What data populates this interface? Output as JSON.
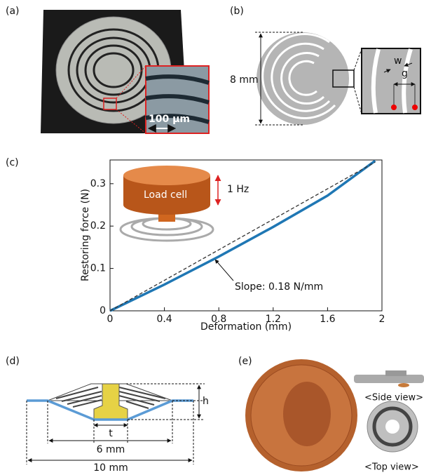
{
  "panels": {
    "labels": [
      "(a)",
      "(b)",
      "(c)",
      "(d)",
      "(e)"
    ]
  },
  "panel_a": {
    "scale": "100 μm"
  },
  "panel_b": {
    "size": "8 mm",
    "w": "w",
    "g": "g"
  },
  "chart_data": {
    "type": "line",
    "xlabel": "Deformation (mm)",
    "ylabel": "Restoring force (N)",
    "annotations": [
      "Slope: 0.18 N/mm",
      "Load cell",
      "1 Hz"
    ],
    "x": [
      0,
      0.4,
      0.8,
      1.2,
      1.6,
      1.95
    ],
    "series": [
      {
        "color": "#1f77b4",
        "values": [
          0,
          0.062,
          0.128,
          0.198,
          0.272,
          0.354
        ]
      },
      {
        "color": "#333333",
        "dashed": true,
        "values": [
          0,
          0.072,
          0.144,
          0.216,
          0.288,
          0.351
        ]
      }
    ],
    "xlim": [
      0,
      2
    ],
    "ylim": [
      0,
      0.356
    ],
    "xticks": [
      0,
      0.4,
      0.8,
      1.2,
      1.6,
      2
    ],
    "yticks": [
      0,
      0.1,
      0.2,
      0.3
    ]
  },
  "panel_d": {
    "h": "h",
    "t": "t",
    "inner": "6 mm",
    "outer": "10 mm"
  },
  "panel_e": {
    "side": "<Side view>",
    "top": "<Top view>"
  }
}
